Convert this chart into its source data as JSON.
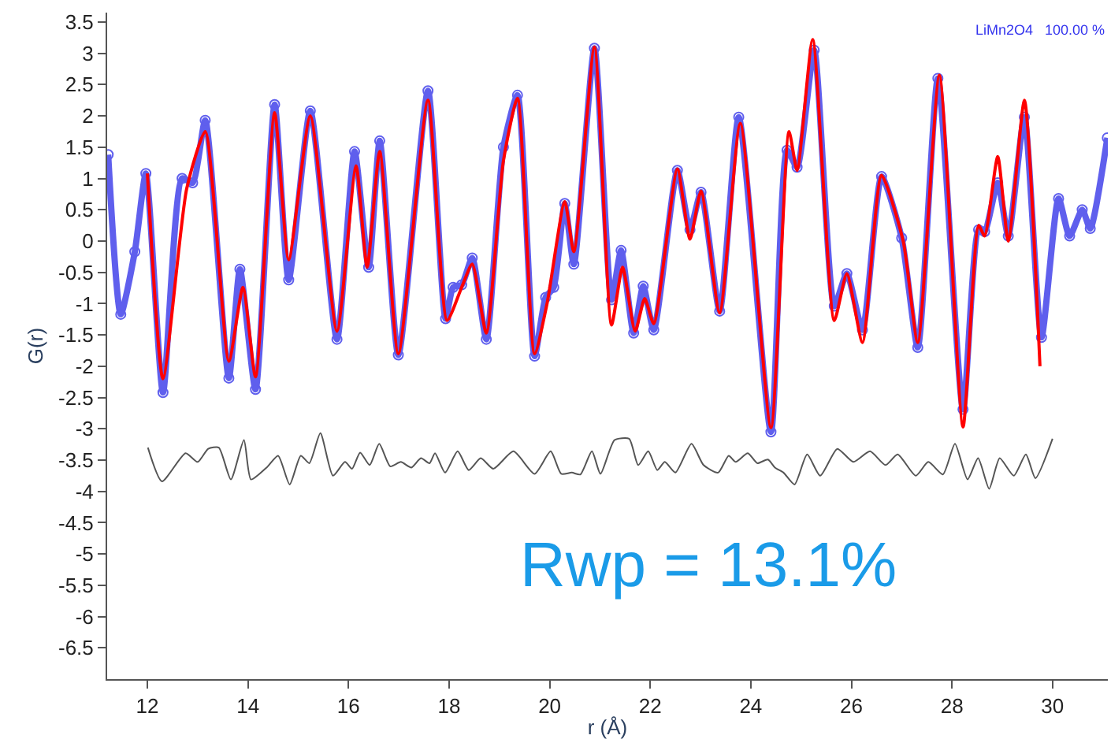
{
  "chart_data": {
    "type": "line",
    "xlabel": "r (Å)",
    "ylabel": "G(r)",
    "xlim": [
      11.2,
      31.1
    ],
    "ylim": [
      -7,
      3.65
    ],
    "xticks": [
      12,
      14,
      16,
      18,
      20,
      22,
      24,
      26,
      28,
      30
    ],
    "yticks": [
      -6.5,
      -6,
      -5.5,
      -5,
      -4.5,
      -4,
      -3.5,
      -3,
      -2.5,
      -2,
      -1.5,
      -1,
      -0.5,
      0,
      0.5,
      1,
      1.5,
      2,
      2.5,
      3,
      3.5
    ],
    "annotations": [
      "LiMn2O4   100.00 %",
      "Rwp = 13.1%"
    ],
    "series": [
      {
        "marker": "circle",
        "color": "#2a2ae8",
        "x": [
          11.22,
          11.47,
          11.75,
          11.97,
          12.31,
          12.69,
          12.9,
          13.15,
          13.62,
          13.84,
          14.15,
          14.53,
          14.81,
          15.24,
          15.77,
          16.12,
          16.4,
          16.62,
          16.99,
          17.58,
          17.93,
          18.08,
          18.25,
          18.46,
          18.74,
          19.08,
          19.36,
          19.7,
          19.92,
          20.08,
          20.3,
          20.48,
          20.89,
          21.23,
          21.42,
          21.67,
          21.86,
          22.07,
          22.54,
          22.79,
          23.01,
          23.38,
          23.76,
          24.4,
          24.72,
          24.92,
          25.26,
          25.66,
          25.91,
          26.22,
          26.6,
          27.0,
          27.32,
          27.72,
          28.22,
          28.53,
          28.65,
          28.91,
          29.12,
          29.44,
          29.78,
          30.12,
          30.34,
          30.59,
          30.75,
          31.09
        ],
        "values": [
          1.38,
          -1.17,
          -0.17,
          1.08,
          -2.42,
          1.0,
          0.93,
          1.93,
          -2.19,
          -0.45,
          -2.37,
          2.18,
          -0.62,
          2.08,
          -1.57,
          1.43,
          -0.42,
          1.6,
          -1.82,
          2.4,
          -1.24,
          -0.74,
          -0.7,
          -0.27,
          -1.57,
          1.5,
          2.33,
          -1.84,
          -0.9,
          -0.74,
          0.6,
          -0.37,
          3.08,
          -0.94,
          -0.15,
          -1.47,
          -0.72,
          -1.42,
          1.13,
          0.18,
          0.78,
          -1.12,
          1.98,
          -3.05,
          1.45,
          1.18,
          3.05,
          -1.04,
          -0.52,
          -1.42,
          1.03,
          0.05,
          -1.7,
          2.6,
          -2.69,
          0.18,
          0.15,
          0.93,
          0.08,
          1.98,
          -1.54,
          0.68,
          0.08,
          0.5,
          0.2,
          1.65
        ]
      },
      {
        "marker": "none",
        "color": "#ff0000",
        "x": [
          12.0,
          12.31,
          12.78,
          13.15,
          13.62,
          13.9,
          14.15,
          14.53,
          14.81,
          15.24,
          15.77,
          16.15,
          16.37,
          16.62,
          16.99,
          17.58,
          17.96,
          18.25,
          18.46,
          18.74,
          19.08,
          19.36,
          19.7,
          19.95,
          20.3,
          20.48,
          20.89,
          21.23,
          21.45,
          21.7,
          21.89,
          22.07,
          22.54,
          22.79,
          23.01,
          23.38,
          23.79,
          24.4,
          24.76,
          24.92,
          25.23,
          25.66,
          25.91,
          26.22,
          26.6,
          27.03,
          27.32,
          27.75,
          28.22,
          28.53,
          28.65,
          28.91,
          29.12,
          29.44,
          29.75
        ],
        "values": [
          1.08,
          -2.2,
          0.83,
          1.75,
          -1.92,
          -0.74,
          -2.17,
          2.05,
          -0.3,
          2.0,
          -1.44,
          1.2,
          -0.42,
          1.43,
          -1.8,
          2.25,
          -1.27,
          -0.74,
          -0.37,
          -1.47,
          1.28,
          2.28,
          -1.8,
          -0.99,
          0.63,
          -0.17,
          3.1,
          -1.34,
          -0.42,
          -1.44,
          -0.92,
          -1.32,
          1.15,
          0.03,
          0.8,
          -1.15,
          1.88,
          -2.98,
          1.75,
          1.13,
          3.22,
          -1.27,
          -0.52,
          -1.62,
          1.05,
          0.0,
          -1.62,
          2.65,
          -2.97,
          0.25,
          0.08,
          1.35,
          0.0,
          2.25,
          -2.0
        ]
      },
      {
        "marker": "none",
        "color": "#555555",
        "x": [
          12.01,
          12.29,
          12.76,
          13.0,
          13.21,
          13.42,
          13.66,
          13.92,
          14.06,
          14.37,
          14.6,
          14.83,
          15.05,
          15.22,
          15.44,
          15.69,
          15.93,
          16.07,
          16.23,
          16.42,
          16.61,
          16.83,
          17.04,
          17.25,
          17.44,
          17.61,
          17.72,
          17.92,
          18.17,
          18.39,
          18.63,
          18.88,
          19.28,
          19.7,
          20.02,
          20.23,
          20.44,
          20.61,
          20.84,
          21.01,
          21.29,
          21.58,
          21.76,
          21.96,
          22.14,
          22.29,
          22.5,
          22.82,
          23.06,
          23.35,
          23.56,
          23.7,
          23.94,
          24.13,
          24.34,
          24.48,
          24.65,
          24.87,
          25.12,
          25.38,
          25.72,
          26.04,
          26.37,
          26.68,
          26.92,
          27.28,
          27.53,
          27.82,
          28.06,
          28.31,
          28.52,
          28.74,
          28.95,
          29.23,
          29.47,
          29.66,
          30.0
        ],
        "values": [
          -3.3,
          -3.84,
          -3.39,
          -3.53,
          -3.32,
          -3.3,
          -3.81,
          -3.18,
          -3.81,
          -3.62,
          -3.43,
          -3.89,
          -3.43,
          -3.55,
          -3.07,
          -3.75,
          -3.53,
          -3.64,
          -3.38,
          -3.58,
          -3.24,
          -3.6,
          -3.53,
          -3.62,
          -3.47,
          -3.55,
          -3.39,
          -3.7,
          -3.36,
          -3.66,
          -3.47,
          -3.64,
          -3.36,
          -3.72,
          -3.36,
          -3.72,
          -3.7,
          -3.73,
          -3.36,
          -3.72,
          -3.18,
          -3.16,
          -3.58,
          -3.36,
          -3.66,
          -3.53,
          -3.7,
          -3.24,
          -3.58,
          -3.7,
          -3.43,
          -3.53,
          -3.39,
          -3.55,
          -3.49,
          -3.62,
          -3.7,
          -3.89,
          -3.41,
          -3.75,
          -3.32,
          -3.53,
          -3.36,
          -3.58,
          -3.41,
          -3.75,
          -3.53,
          -3.73,
          -3.24,
          -3.81,
          -3.47,
          -3.96,
          -3.47,
          -3.75,
          -3.41,
          -3.79,
          -3.16
        ]
      }
    ]
  }
}
